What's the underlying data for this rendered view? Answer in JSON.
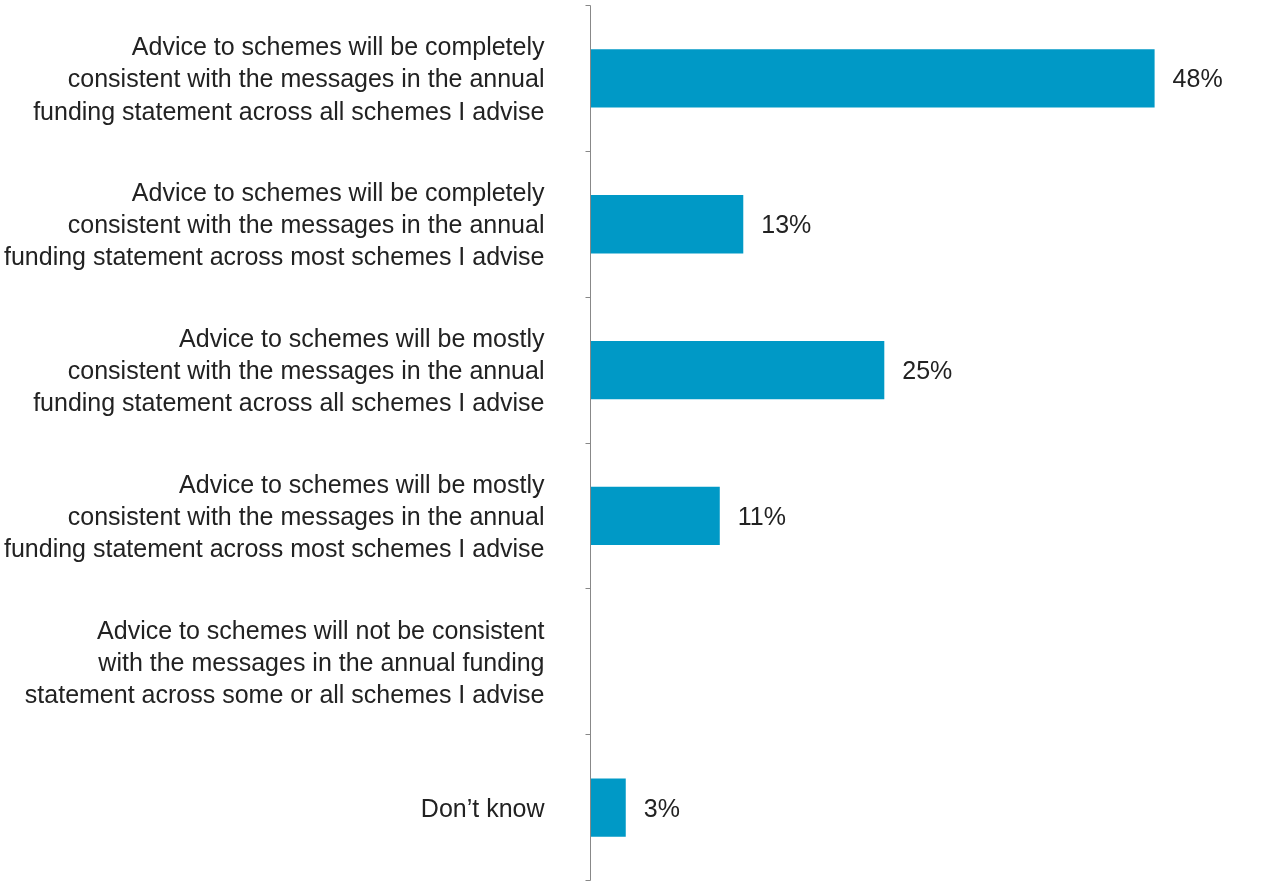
{
  "chart_data": {
    "type": "bar",
    "orientation": "horizontal",
    "categories": [
      "Advice to schemes will be completely\nconsistent with the messages in the annual\nfunding statement across all schemes I advise",
      "Advice to schemes will be completely\nconsistent with the messages in the annual\nfunding statement across most schemes I advise",
      "Advice to schemes will be mostly\nconsistent with the messages in the annual\nfunding statement across all schemes I advise",
      "Advice to schemes will be mostly\nconsistent with the messages in the annual\nfunding statement across most schemes I advise",
      "Advice to schemes will not be consistent\nwith the messages in the annual funding\nstatement across some or all schemes I advise",
      "Don’t know"
    ],
    "values": [
      48,
      13,
      25,
      11,
      null,
      3
    ],
    "value_labels": [
      "48%",
      "13%",
      "25%",
      "11%",
      null,
      "3%"
    ],
    "color": "#0099c6",
    "grid": false,
    "tick_labels": "y"
  }
}
